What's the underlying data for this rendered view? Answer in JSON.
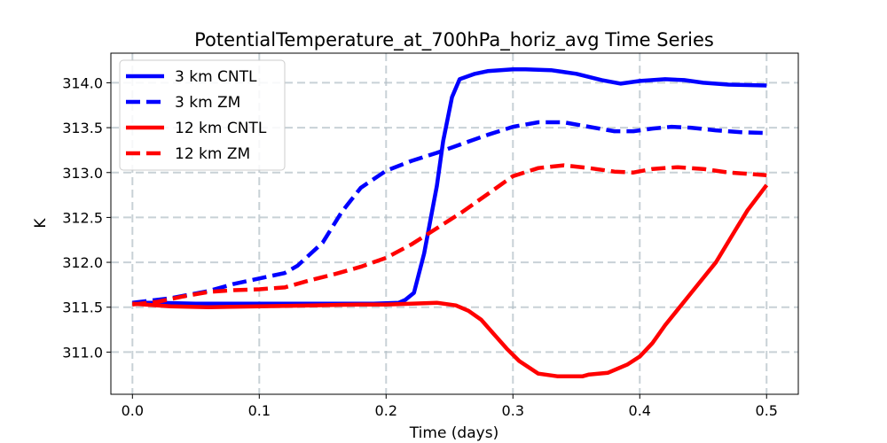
{
  "chart_data": {
    "type": "line",
    "title": "PotentialTemperature_at_700hPa_horiz_avg Time Series",
    "xlabel": "Time (days)",
    "ylabel": "K",
    "xlim": [
      -0.017,
      0.525
    ],
    "ylim": [
      310.53,
      314.33
    ],
    "x_ticks": [
      0.0,
      0.1,
      0.2,
      0.3,
      0.4,
      0.5
    ],
    "x_tick_labels": [
      "0.0",
      "0.1",
      "0.2",
      "0.3",
      "0.4",
      "0.5"
    ],
    "y_ticks": [
      311.0,
      311.5,
      312.0,
      312.5,
      313.0,
      313.5,
      314.0
    ],
    "y_tick_labels": [
      "311.0",
      "311.5",
      "312.0",
      "312.5",
      "313.0",
      "313.5",
      "314.0"
    ],
    "grid": true,
    "legend_position": "top-left",
    "series": [
      {
        "name": "3 km CNTL",
        "color": "#0000ff",
        "dash": "solid",
        "points": [
          [
            0.0,
            311.55
          ],
          [
            0.02,
            311.55
          ],
          [
            0.05,
            311.54
          ],
          [
            0.08,
            311.54
          ],
          [
            0.12,
            311.54
          ],
          [
            0.16,
            311.54
          ],
          [
            0.19,
            311.54
          ],
          [
            0.21,
            311.55
          ],
          [
            0.215,
            311.58
          ],
          [
            0.222,
            311.66
          ],
          [
            0.23,
            312.1
          ],
          [
            0.24,
            312.85
          ],
          [
            0.245,
            313.35
          ],
          [
            0.252,
            313.84
          ],
          [
            0.258,
            314.04
          ],
          [
            0.27,
            314.1
          ],
          [
            0.28,
            314.13
          ],
          [
            0.3,
            314.15
          ],
          [
            0.31,
            314.15
          ],
          [
            0.33,
            314.14
          ],
          [
            0.35,
            314.1
          ],
          [
            0.37,
            314.03
          ],
          [
            0.385,
            313.99
          ],
          [
            0.4,
            314.02
          ],
          [
            0.42,
            314.04
          ],
          [
            0.435,
            314.03
          ],
          [
            0.45,
            314.0
          ],
          [
            0.47,
            313.98
          ],
          [
            0.5,
            313.97
          ]
        ]
      },
      {
        "name": "3 km ZM",
        "color": "#0000ff",
        "dash": "dashed",
        "points": [
          [
            0.0,
            311.55
          ],
          [
            0.03,
            311.6
          ],
          [
            0.06,
            311.68
          ],
          [
            0.08,
            311.76
          ],
          [
            0.1,
            311.82
          ],
          [
            0.12,
            311.88
          ],
          [
            0.13,
            311.96
          ],
          [
            0.15,
            312.22
          ],
          [
            0.165,
            312.56
          ],
          [
            0.18,
            312.83
          ],
          [
            0.2,
            313.02
          ],
          [
            0.22,
            313.13
          ],
          [
            0.24,
            313.22
          ],
          [
            0.26,
            313.32
          ],
          [
            0.28,
            313.42
          ],
          [
            0.3,
            313.51
          ],
          [
            0.32,
            313.56
          ],
          [
            0.34,
            313.56
          ],
          [
            0.36,
            313.51
          ],
          [
            0.38,
            313.46
          ],
          [
            0.395,
            313.46
          ],
          [
            0.41,
            313.49
          ],
          [
            0.425,
            313.51
          ],
          [
            0.44,
            313.5
          ],
          [
            0.46,
            313.47
          ],
          [
            0.48,
            313.45
          ],
          [
            0.5,
            313.44
          ]
        ]
      },
      {
        "name": "12 km CNTL",
        "color": "#ff0000",
        "dash": "solid",
        "points": [
          [
            0.0,
            311.54
          ],
          [
            0.03,
            311.51
          ],
          [
            0.06,
            311.5
          ],
          [
            0.1,
            311.51
          ],
          [
            0.14,
            311.52
          ],
          [
            0.18,
            311.53
          ],
          [
            0.2,
            311.53
          ],
          [
            0.22,
            311.54
          ],
          [
            0.24,
            311.55
          ],
          [
            0.255,
            311.52
          ],
          [
            0.265,
            311.46
          ],
          [
            0.275,
            311.36
          ],
          [
            0.285,
            311.2
          ],
          [
            0.295,
            311.04
          ],
          [
            0.305,
            310.9
          ],
          [
            0.32,
            310.76
          ],
          [
            0.335,
            310.73
          ],
          [
            0.35,
            310.73
          ],
          [
            0.355,
            310.73
          ],
          [
            0.36,
            310.75
          ],
          [
            0.375,
            310.77
          ],
          [
            0.39,
            310.86
          ],
          [
            0.4,
            310.95
          ],
          [
            0.41,
            311.1
          ],
          [
            0.42,
            311.3
          ],
          [
            0.44,
            311.65
          ],
          [
            0.46,
            312.0
          ],
          [
            0.475,
            312.35
          ],
          [
            0.485,
            312.58
          ],
          [
            0.5,
            312.86
          ]
        ]
      },
      {
        "name": "12 km ZM",
        "color": "#ff0000",
        "dash": "dashed",
        "points": [
          [
            0.0,
            311.53
          ],
          [
            0.02,
            311.56
          ],
          [
            0.04,
            311.62
          ],
          [
            0.06,
            311.67
          ],
          [
            0.08,
            311.69
          ],
          [
            0.1,
            311.7
          ],
          [
            0.12,
            311.72
          ],
          [
            0.14,
            311.8
          ],
          [
            0.16,
            311.87
          ],
          [
            0.18,
            311.95
          ],
          [
            0.2,
            312.05
          ],
          [
            0.22,
            312.2
          ],
          [
            0.24,
            312.38
          ],
          [
            0.26,
            312.56
          ],
          [
            0.28,
            312.76
          ],
          [
            0.3,
            312.96
          ],
          [
            0.32,
            313.05
          ],
          [
            0.34,
            313.08
          ],
          [
            0.36,
            313.05
          ],
          [
            0.38,
            313.01
          ],
          [
            0.395,
            313.0
          ],
          [
            0.41,
            313.04
          ],
          [
            0.43,
            313.06
          ],
          [
            0.45,
            313.04
          ],
          [
            0.47,
            313.0
          ],
          [
            0.5,
            312.97
          ]
        ]
      }
    ]
  }
}
